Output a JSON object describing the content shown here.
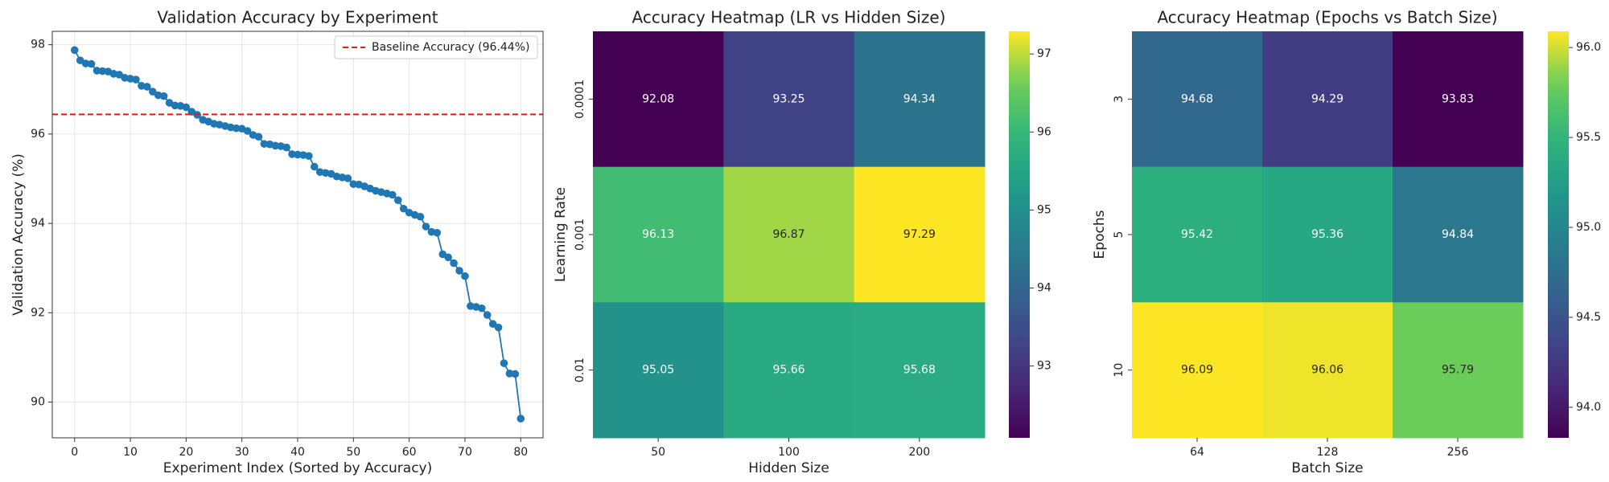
{
  "chart_data": [
    {
      "type": "line",
      "title": "Validation Accuracy by Experiment",
      "xlabel": "Experiment Index (Sorted by Accuracy)",
      "ylabel": "Validation Accuracy (%)",
      "x": [
        0,
        1,
        2,
        3,
        4,
        5,
        6,
        7,
        8,
        9,
        10,
        11,
        12,
        13,
        14,
        15,
        16,
        17,
        18,
        19,
        20,
        21,
        22,
        23,
        24,
        25,
        26,
        27,
        28,
        29,
        30,
        31,
        32,
        33,
        34,
        35,
        36,
        37,
        38,
        39,
        40,
        41,
        42,
        43,
        44,
        45,
        46,
        47,
        48,
        49,
        50,
        51,
        52,
        53,
        54,
        55,
        56,
        57,
        58,
        59,
        60,
        61,
        62,
        63,
        64,
        65,
        66,
        67,
        68,
        69,
        70,
        71,
        72,
        73,
        74,
        75,
        76,
        77,
        78,
        79,
        80
      ],
      "values": [
        97.88,
        97.65,
        97.58,
        97.57,
        97.42,
        97.41,
        97.4,
        97.35,
        97.33,
        97.26,
        97.24,
        97.22,
        97.08,
        97.06,
        96.95,
        96.87,
        96.85,
        96.7,
        96.64,
        96.63,
        96.6,
        96.5,
        96.43,
        96.32,
        96.28,
        96.23,
        96.21,
        96.18,
        96.15,
        96.13,
        96.12,
        96.07,
        95.98,
        95.94,
        95.78,
        95.77,
        95.74,
        95.73,
        95.7,
        95.55,
        95.54,
        95.53,
        95.51,
        95.27,
        95.15,
        95.13,
        95.11,
        95.05,
        95.03,
        95.01,
        94.88,
        94.87,
        94.83,
        94.78,
        94.73,
        94.7,
        94.67,
        94.64,
        94.52,
        94.33,
        94.24,
        94.19,
        94.15,
        93.93,
        93.81,
        93.79,
        93.31,
        93.24,
        93.11,
        92.94,
        92.82,
        92.15,
        92.13,
        92.1,
        91.95,
        91.75,
        91.67,
        90.87,
        90.64,
        90.63,
        89.63
      ],
      "color": "#1f77b4",
      "hline": {
        "value": 96.44,
        "label": "Baseline Accuracy (96.44%)",
        "color": "#e41a1c"
      },
      "legend": "upper right",
      "grid": true,
      "xlim": [
        -4,
        84
      ],
      "xticks": [
        0,
        10,
        20,
        30,
        40,
        50,
        60,
        70,
        80
      ],
      "ylim": [
        89.2,
        98.3
      ],
      "yticks": [
        90,
        92,
        94,
        96,
        98
      ]
    },
    {
      "type": "heatmap",
      "title": "Accuracy Heatmap (LR vs Hidden Size)",
      "xlabel": "Hidden Size",
      "ylabel": "Learning Rate",
      "categories": [
        "50",
        "100",
        "200"
      ],
      "rows": [
        "0.0001",
        "0.001",
        "0.01"
      ],
      "values": [
        [
          92.08,
          93.25,
          94.34
        ],
        [
          96.13,
          96.87,
          97.29
        ],
        [
          95.05,
          95.66,
          95.68
        ]
      ],
      "colormap": "viridis",
      "clim": [
        92.08,
        97.29
      ],
      "cticks": [
        93,
        94,
        95,
        96,
        97
      ]
    },
    {
      "type": "heatmap",
      "title": "Accuracy Heatmap (Epochs vs Batch Size)",
      "xlabel": "Batch Size",
      "ylabel": "Epochs",
      "categories": [
        "64",
        "128",
        "256"
      ],
      "rows": [
        "3",
        "5",
        "10"
      ],
      "values": [
        [
          94.68,
          94.29,
          93.83
        ],
        [
          95.42,
          95.36,
          94.84
        ],
        [
          96.09,
          96.06,
          95.79
        ]
      ],
      "colormap": "viridis",
      "clim": [
        93.83,
        96.09
      ],
      "cticks": [
        {
          "value": 94.0,
          "label": "94.0"
        },
        {
          "value": 94.5,
          "label": "94.5"
        },
        {
          "value": 95.0,
          "label": "95.0"
        },
        {
          "value": 95.5,
          "label": "95.5"
        },
        {
          "value": 96.0,
          "label": "96.0"
        }
      ]
    }
  ]
}
